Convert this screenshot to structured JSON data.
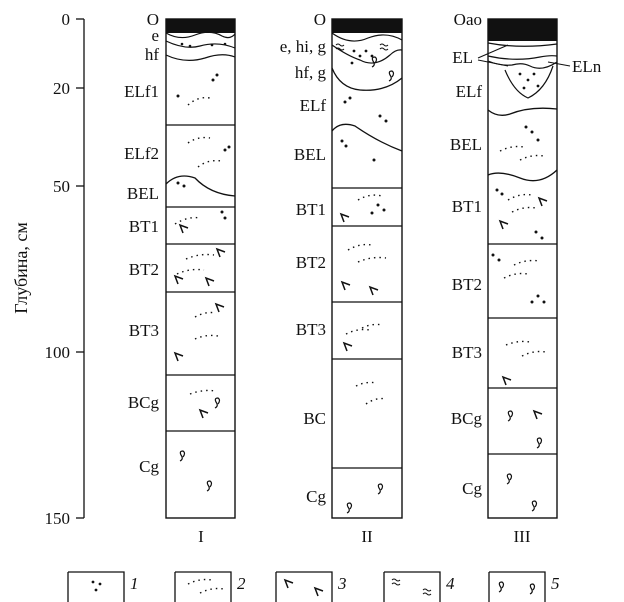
{
  "axis": {
    "label": "Глубина, см",
    "ticks": [
      {
        "depth": 0,
        "label": "0"
      },
      {
        "depth": 20,
        "label": "20"
      },
      {
        "depth": 50,
        "label": "50"
      },
      {
        "depth": 100,
        "label": "100"
      },
      {
        "depth": 150,
        "label": "150"
      }
    ],
    "max_depth": 150
  },
  "profiles": [
    {
      "id": "I",
      "label": "I",
      "horizons": [
        {
          "name": "O",
          "top": 0,
          "bottom": 4
        },
        {
          "name": "e",
          "top": 4,
          "bottom": 6
        },
        {
          "name": "hf",
          "top": 6,
          "bottom": 13
        },
        {
          "name": "ELf1",
          "top": 13,
          "bottom": 32
        },
        {
          "name": "ELf2",
          "top": 32,
          "bottom": 46
        },
        {
          "name": "BEL",
          "top": 46,
          "bottom": 56
        },
        {
          "name": "BT1",
          "top": 56,
          "bottom": 67
        },
        {
          "name": "BT2",
          "top": 67,
          "bottom": 82
        },
        {
          "name": "BT3",
          "top": 82,
          "bottom": 107
        },
        {
          "name": "BCg",
          "top": 107,
          "bottom": 124
        },
        {
          "name": "Cg",
          "top": 124,
          "bottom": 150
        }
      ]
    },
    {
      "id": "II",
      "label": "II",
      "horizons": [
        {
          "name": "O",
          "top": 0,
          "bottom": 4
        },
        {
          "name": "e, hi, g",
          "top": 4,
          "bottom": 9
        },
        {
          "name": "hf, g",
          "top": 9,
          "bottom": 20
        },
        {
          "name": "ELf",
          "top": 20,
          "bottom": 33
        },
        {
          "name": "BEL",
          "top": 33,
          "bottom": 51
        },
        {
          "name": "BT1",
          "top": 51,
          "bottom": 62
        },
        {
          "name": "BT2",
          "top": 62,
          "bottom": 85
        },
        {
          "name": "BT3",
          "top": 85,
          "bottom": 103
        },
        {
          "name": "BC",
          "top": 103,
          "bottom": 136
        },
        {
          "name": "Cg",
          "top": 136,
          "bottom": 150
        }
      ]
    },
    {
      "id": "III",
      "label": "III",
      "horizons": [
        {
          "name": "Oao",
          "top": 0,
          "bottom": 7
        },
        {
          "name": "EL",
          "top": 7,
          "bottom": 11
        },
        {
          "name": "ELn",
          "top": 11,
          "bottom": 14
        },
        {
          "name": "ELf",
          "top": 14,
          "bottom": 27
        },
        {
          "name": "BEL",
          "top": 27,
          "bottom": 47
        },
        {
          "name": "BT1",
          "top": 47,
          "bottom": 68
        },
        {
          "name": "BT2",
          "top": 68,
          "bottom": 90
        },
        {
          "name": "BT3",
          "top": 90,
          "bottom": 112
        },
        {
          "name": "BCg",
          "top": 112,
          "bottom": 130
        },
        {
          "name": "Cg",
          "top": 130,
          "bottom": 150
        }
      ]
    }
  ],
  "legend": [
    {
      "symbol": "dots",
      "label": "1"
    },
    {
      "symbol": "dotted-arcs",
      "label": "2"
    },
    {
      "symbol": "checkmarks",
      "label": "3"
    },
    {
      "symbol": "waves",
      "label": "4"
    },
    {
      "symbol": "squiggles",
      "label": "5"
    }
  ]
}
